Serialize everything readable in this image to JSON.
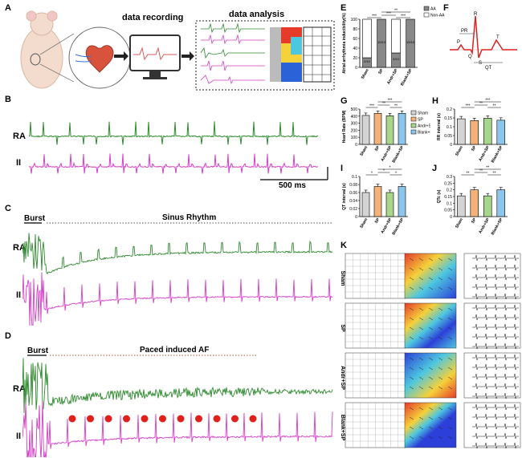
{
  "panels": {
    "A": {
      "label": "A",
      "data_recording": "data recording",
      "data_analysis": "data analysis"
    },
    "B": {
      "label": "B",
      "lead_ra": "RA",
      "lead_ii": "II",
      "scale": "500 ms"
    },
    "C": {
      "label": "C",
      "burst": "Burst",
      "rhythm": "Sinus Rhythm",
      "lead_ra": "RA",
      "lead_ii": "II"
    },
    "D": {
      "label": "D",
      "burst": "Burst",
      "rhythm": "Paced induced AF",
      "lead_ra": "RA",
      "lead_ii": "II"
    },
    "F": {
      "label": "F",
      "ecg_labels": [
        "R",
        "PR",
        "P",
        "Q",
        "S",
        "T",
        "QT"
      ]
    },
    "K": {
      "label": "K",
      "groups": [
        "Sham",
        "SP",
        "Andr+SP",
        "Blank+SP"
      ]
    }
  },
  "colors": {
    "sham": "#d4d4d4",
    "sp": "#f3b27a",
    "andr": "#a8d68a",
    "blank": "#8cc6ea",
    "ra_trace": "#2e8b2e",
    "ii_trace": "#d63fc8",
    "red": "#e0201b"
  },
  "chart_data": [
    {
      "id": "E",
      "type": "bar",
      "title": "",
      "ylabel": "Atrial arrhythmia inducibility(%)",
      "categories": [
        "Sham",
        "SP",
        "Andr+SP",
        "Blank+SP"
      ],
      "series": [
        {
          "name": "AA",
          "values": [
            20,
            100,
            30,
            100
          ]
        },
        {
          "name": "Non-AA",
          "values": [
            80,
            0,
            70,
            0
          ]
        }
      ],
      "bar_labels": [
        "2/10",
        "10/10",
        "3/10",
        "10/10"
      ],
      "ylim": [
        0,
        100
      ],
      "yticks": [
        0,
        20,
        40,
        60,
        80,
        100
      ],
      "legend": "right",
      "significance": [
        "***",
        "***",
        "***",
        "**"
      ]
    },
    {
      "id": "G",
      "type": "bar",
      "ylabel": "Heart Rate (BPM)",
      "categories": [
        "Sham",
        "SP",
        "Andr+SP",
        "Blank+SP"
      ],
      "values": [
        410,
        440,
        405,
        440
      ],
      "ylim": [
        0,
        500
      ],
      "yticks": [
        0,
        100,
        200,
        300,
        400,
        500
      ],
      "significance": [
        "***",
        "**",
        "**",
        "***"
      ],
      "legend": "right",
      "legend_entries": [
        "Sham",
        "SP",
        "Andr+SP",
        "Blank+SP"
      ]
    },
    {
      "id": "H",
      "type": "bar",
      "ylabel": "RR interval (s)",
      "categories": [
        "Sham",
        "SP",
        "Andr+SP",
        "Blank+SP"
      ],
      "values": [
        0.145,
        0.135,
        0.148,
        0.137
      ],
      "ylim": [
        0,
        0.2
      ],
      "yticks": [
        0,
        0.05,
        0.1,
        0.15,
        0.2
      ],
      "significance": [
        "***",
        "**",
        "**",
        "***"
      ]
    },
    {
      "id": "I",
      "type": "bar",
      "ylabel": "QT interval (s)",
      "categories": [
        "Sham",
        "SP",
        "Andr+SP",
        "Blank+SP"
      ],
      "values": [
        0.06,
        0.075,
        0.06,
        0.075
      ],
      "ylim": [
        0,
        0.1
      ],
      "yticks": [
        0,
        0.02,
        0.04,
        0.06,
        0.08,
        0.1
      ],
      "significance": [
        "*",
        "*",
        "*",
        "*"
      ]
    },
    {
      "id": "J",
      "type": "bar",
      "ylabel": "QTc (s)",
      "categories": [
        "Sham",
        "SP",
        "Andr+SP",
        "Blank+SP"
      ],
      "values": [
        0.155,
        0.2,
        0.155,
        0.2
      ],
      "ylim": [
        0,
        0.3
      ],
      "yticks": [
        0,
        0.05,
        0.1,
        0.15,
        0.2,
        0.25,
        0.3
      ],
      "significance": [
        "**",
        "**",
        "**",
        "**"
      ]
    }
  ]
}
